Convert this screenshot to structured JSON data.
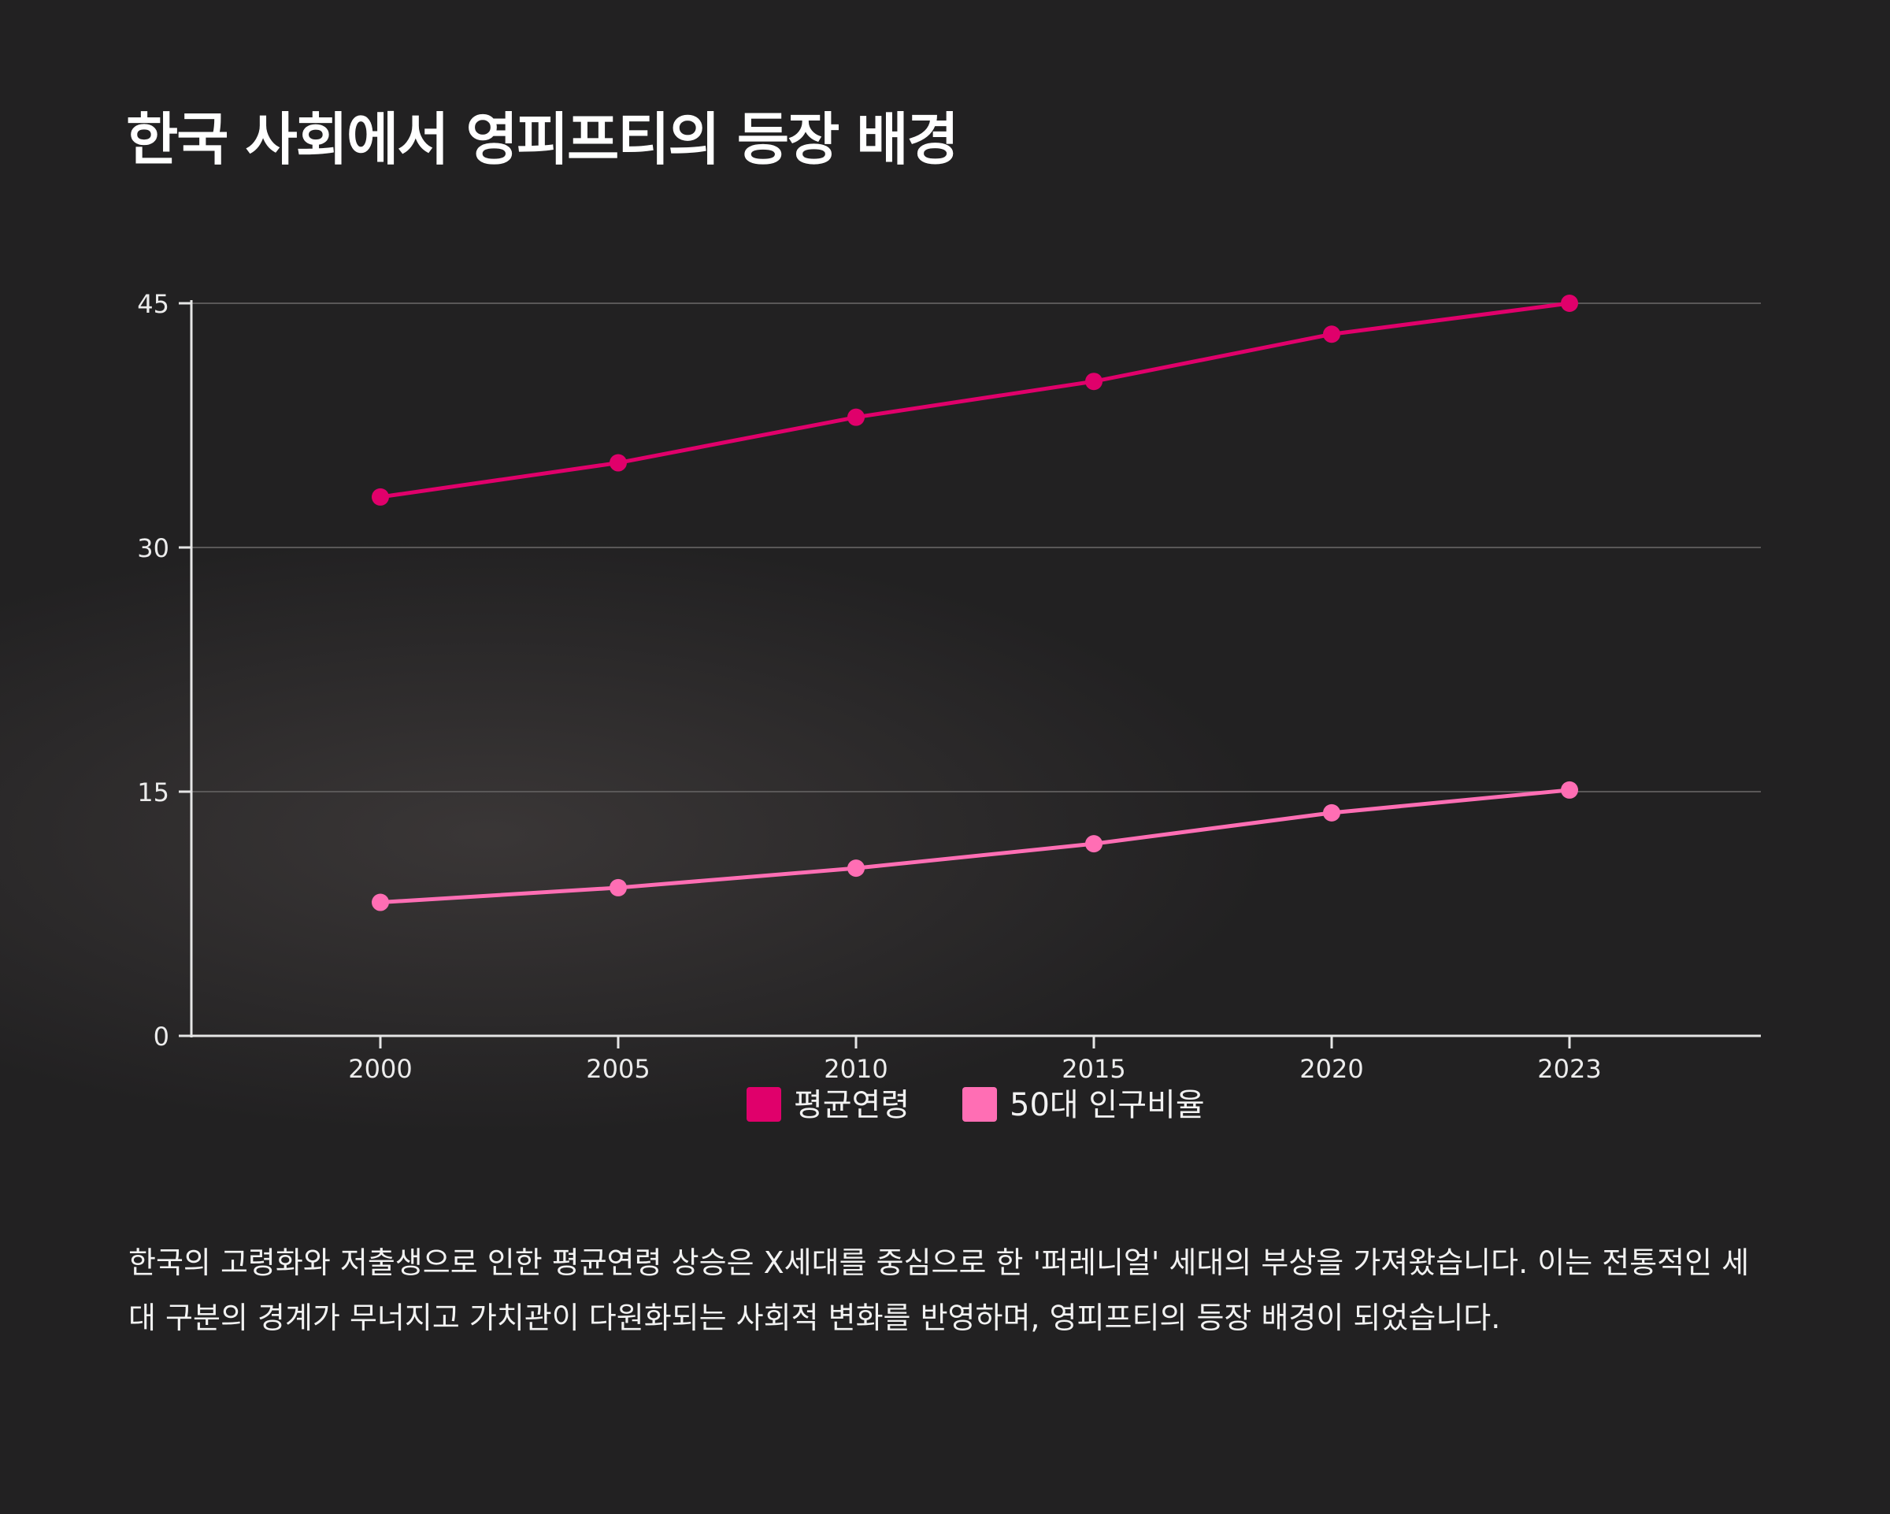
{
  "title": "한국 사회에서 영피프티의 등장 배경",
  "description": "한국의 고령화와 저출생으로 인한 평균연령 상승은 X세대를 중심으로 한 '퍼레니얼' 세대의 부상을 가져왔습니다. 이는 전통적인 세대 구분의 경계가 무너지고 가치관이 다원화되는 사회적 변화를 반영하며, 영피프티의 등장 배경이 되었습니다.",
  "chart_data": {
    "type": "line",
    "categories": [
      "2000",
      "2005",
      "2010",
      "2015",
      "2020",
      "2023"
    ],
    "series": [
      {
        "name": "평균연령",
        "color": "#e0006b",
        "values": [
          33.1,
          35.2,
          38.0,
          40.2,
          43.1,
          45.0
        ]
      },
      {
        "name": "50대 인구비율",
        "color": "#ff6eb4",
        "values": [
          8.2,
          9.1,
          10.3,
          11.8,
          13.7,
          15.1
        ]
      }
    ],
    "yticks": [
      0,
      15,
      30,
      45
    ],
    "ylim": [
      0,
      45
    ],
    "grid": true,
    "legend_position": "bottom-center",
    "xlabel": "",
    "ylabel": ""
  }
}
